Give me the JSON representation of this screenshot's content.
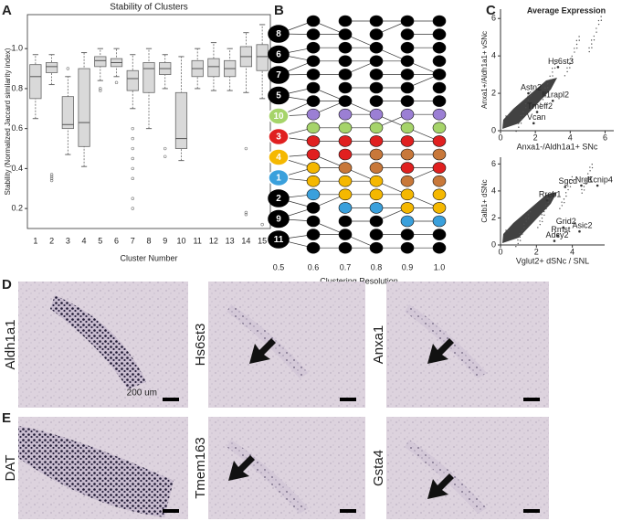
{
  "panel_labels": [
    "A",
    "B",
    "C",
    "D",
    "E"
  ],
  "chart_data": [
    {
      "type": "box",
      "title": "Stability of Clusters",
      "x_label": "Cluster Number",
      "y_label": "Stability (Normalized Jaccard similarity index)",
      "categories": [
        "1",
        "2",
        "3",
        "4",
        "5",
        "6",
        "7",
        "8",
        "9",
        "10",
        "11",
        "12",
        "13",
        "14",
        "15"
      ],
      "color": "#d9d9d9",
      "ylim": [
        0.1,
        1.17
      ],
      "yticks": [
        0.2,
        0.4,
        0.6,
        0.8,
        {
          "value": 1,
          "label": "1.0"
        }
      ],
      "boxes": [
        {
          "min": 0.65,
          "q1": 0.75,
          "median": 0.86,
          "q3": 0.92,
          "max": 0.97,
          "outliers": []
        },
        {
          "min": 0.82,
          "q1": 0.88,
          "median": 0.91,
          "q3": 0.93,
          "max": 0.97,
          "outliers": [
            0.37,
            0.36,
            0.35,
            0.34
          ]
        },
        {
          "min": 0.47,
          "q1": 0.6,
          "median": 0.62,
          "q3": 0.76,
          "max": 0.86,
          "outliers": [
            0.9
          ]
        },
        {
          "min": 0.41,
          "q1": 0.51,
          "median": 0.63,
          "q3": 0.9,
          "max": 0.98,
          "outliers": []
        },
        {
          "min": 0.84,
          "q1": 0.91,
          "median": 0.94,
          "q3": 0.96,
          "max": 1.0,
          "outliers": [
            0.8,
            0.79
          ]
        },
        {
          "min": 0.86,
          "q1": 0.91,
          "median": 0.93,
          "q3": 0.95,
          "max": 1.0,
          "outliers": [
            0.83
          ]
        },
        {
          "min": 0.7,
          "q1": 0.79,
          "median": 0.85,
          "q3": 0.89,
          "max": 0.97,
          "outliers": [
            0.6,
            0.55,
            0.5,
            0.45,
            0.4,
            0.35,
            0.25,
            0.2
          ]
        },
        {
          "min": 0.6,
          "q1": 0.78,
          "median": 0.9,
          "q3": 0.93,
          "max": 1.0,
          "outliers": []
        },
        {
          "min": 0.8,
          "q1": 0.87,
          "median": 0.9,
          "q3": 0.93,
          "max": 0.97,
          "outliers": [
            0.5,
            0.46
          ]
        },
        {
          "min": 0.44,
          "q1": 0.5,
          "median": 0.55,
          "q3": 0.78,
          "max": 0.96,
          "outliers": []
        },
        {
          "min": 0.8,
          "q1": 0.86,
          "median": 0.9,
          "q3": 0.94,
          "max": 1.0,
          "outliers": []
        },
        {
          "min": 0.79,
          "q1": 0.86,
          "median": 0.91,
          "q3": 0.95,
          "max": 1.03,
          "outliers": []
        },
        {
          "min": 0.79,
          "q1": 0.86,
          "median": 0.9,
          "q3": 0.94,
          "max": 1.0,
          "outliers": []
        },
        {
          "min": 0.78,
          "q1": 0.91,
          "median": 0.96,
          "q3": 1.01,
          "max": 1.08,
          "outliers": [
            0.5,
            0.18,
            0.17
          ]
        },
        {
          "min": 0.75,
          "q1": 0.89,
          "median": 0.96,
          "q3": 1.02,
          "max": 1.12,
          "outliers": [
            0.12
          ]
        }
      ]
    },
    {
      "type": "scatter",
      "title": "Average Expression",
      "x_label": "Anxa1-/Aldh1a1+ SNc",
      "y_label": "Anxa1+/Aldh1a1+ vSNc",
      "xlim": [
        0,
        6.5
      ],
      "ylim": [
        0,
        6.5
      ],
      "xticks": [
        0,
        2,
        4,
        6
      ],
      "yticks": [
        0,
        2,
        4,
        6
      ],
      "color": "#333333",
      "genes": [
        {
          "name": "Hs6st3",
          "x": 3.3,
          "y": 3.4
        },
        {
          "name": "Astn2",
          "x": 1.6,
          "y": 2.0
        },
        {
          "name": "Il1rapl2",
          "x": 3.0,
          "y": 1.6
        },
        {
          "name": "Tmeff2",
          "x": 2.1,
          "y": 1.0
        },
        {
          "name": "Vcan",
          "x": 1.9,
          "y": 0.4
        }
      ]
    },
    {
      "type": "scatter",
      "x_label": "Vglut2+ dSNc / SNL",
      "y_label": "Calb1+ dSNc",
      "xlim": [
        0,
        5.8
      ],
      "ylim": [
        0,
        6.5
      ],
      "xticks": [
        0,
        2,
        4
      ],
      "yticks": [
        0,
        2,
        4,
        6
      ],
      "color": "#333333",
      "genes": [
        {
          "name": "Sgcd",
          "x": 3.6,
          "y": 4.3
        },
        {
          "name": "Nrg1",
          "x": 4.5,
          "y": 4.4
        },
        {
          "name": "Kcnip4",
          "x": 5.4,
          "y": 4.4
        },
        {
          "name": "Rreb1",
          "x": 2.6,
          "y": 3.3
        },
        {
          "name": "Grid2",
          "x": 3.5,
          "y": 1.3
        },
        {
          "name": "Asic2",
          "x": 4.4,
          "y": 1.0
        },
        {
          "name": "Rmst",
          "x": 3.2,
          "y": 0.7
        },
        {
          "name": "Adcy2",
          "x": 3.0,
          "y": 0.3
        }
      ]
    }
  ],
  "diagram": {
    "x_label": "Clustering Resolution",
    "columns": [
      "0.5",
      "0.6",
      "0.7",
      "0.8",
      "0.9",
      "1.0"
    ],
    "nodes": [
      {
        "label": "8",
        "color": "#000000"
      },
      {
        "label": "6",
        "color": "#000000"
      },
      {
        "label": "7",
        "color": "#000000"
      },
      {
        "label": "5",
        "color": "#000000"
      },
      {
        "label": "10",
        "color": "#a6d46a"
      },
      {
        "label": "3",
        "color": "#e02020"
      },
      {
        "label": "4",
        "color": "#f5b800"
      },
      {
        "label": "1",
        "color": "#3aa0dc"
      },
      {
        "label": "2",
        "color": "#000000"
      },
      {
        "label": "9",
        "color": "#000000"
      },
      {
        "label": "11",
        "color": "#000000"
      }
    ]
  },
  "images": [
    {
      "label": "Aldh1a1",
      "scale_bar": "200 um"
    },
    {
      "label": "Hs6st3"
    },
    {
      "label": "Anxa1"
    },
    {
      "label": "DAT"
    },
    {
      "label": "Tmem163"
    },
    {
      "label": "Gsta4"
    }
  ]
}
